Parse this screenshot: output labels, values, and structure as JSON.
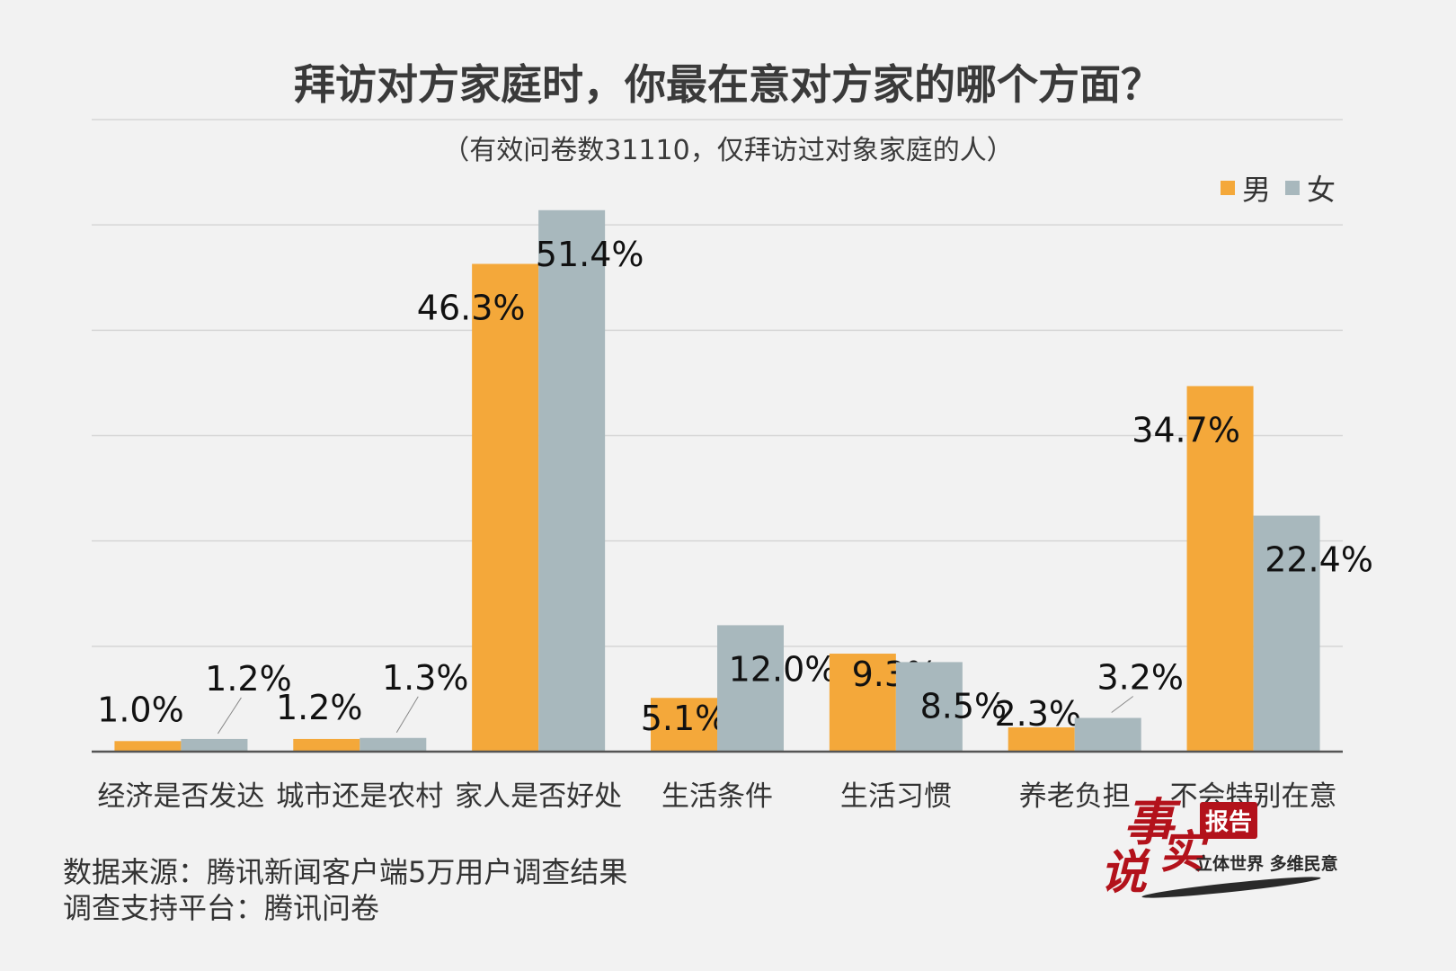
{
  "chart_data": {
    "type": "bar",
    "title": "拜访对方家庭时，你最在意对方家的哪个方面？",
    "subtitle": "（有效问卷数31110，仅拜访过对象家庭的人）",
    "categories": [
      "经济是否发达",
      "城市还是农村",
      "家人是否好处",
      "生活条件",
      "生活习惯",
      "养老负担",
      "不会特别在意"
    ],
    "series": [
      {
        "name": "男",
        "color": "#f4a83a",
        "values": [
          1.0,
          1.2,
          46.3,
          5.1,
          9.3,
          2.3,
          34.7
        ],
        "labels": [
          "1.0%",
          "1.2%",
          "46.3%",
          "5.1%",
          "9.3%",
          "2.3%",
          "34.7%"
        ]
      },
      {
        "name": "女",
        "color": "#a8b8bd",
        "values": [
          1.2,
          1.3,
          51.4,
          12.0,
          8.5,
          3.2,
          22.4
        ],
        "labels": [
          "1.2%",
          "1.3%",
          "51.4%",
          "12.0%",
          "8.5%",
          "3.2%",
          "22.4%"
        ]
      }
    ],
    "ylim": [
      0,
      60
    ],
    "grid": true,
    "legend": "top-right"
  },
  "footer": {
    "source": "数据来源：腾讯新闻客户端5万用户调查结果",
    "platform": "调查支持平台：腾讯问卷"
  },
  "logo": {
    "char1": "事",
    "char2": "实",
    "char3": "说",
    "badge": "报告",
    "tagline": "立体世界 多维民意"
  }
}
